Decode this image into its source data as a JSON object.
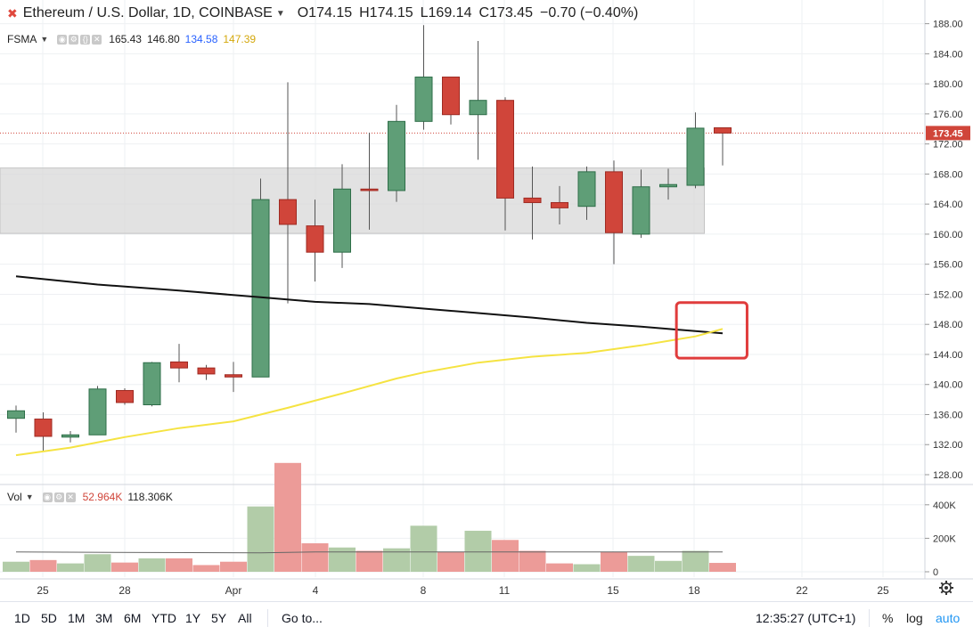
{
  "header": {
    "symbol": "Ethereum / U.S. Dollar, 1D, COINBASE",
    "open": "O174.15",
    "high": "H174.15",
    "low": "L169.14",
    "close": "C173.45",
    "change": "−0.70 (−0.40%)"
  },
  "studies": {
    "sma": {
      "name": "FSMA",
      "values": [
        "165.43",
        "146.80",
        "134.58",
        "147.39"
      ],
      "value_colors": [
        "#222222",
        "#222222",
        "#2962ff",
        "#f2c21b"
      ]
    },
    "vol": {
      "name": "Vol",
      "values": [
        "52.964K",
        "118.306K"
      ],
      "value_colors": [
        "#d0453a",
        "#222222"
      ]
    }
  },
  "price_axis": {
    "ticks": [
      "128.00",
      "132.00",
      "136.00",
      "140.00",
      "144.00",
      "148.00",
      "152.00",
      "156.00",
      "160.00",
      "164.00",
      "168.00",
      "172.00",
      "176.00",
      "180.00",
      "184.00",
      "188.00"
    ],
    "current_price_label": "173.45"
  },
  "volume_axis": {
    "ticks": [
      "0",
      "200K",
      "400K"
    ]
  },
  "time_axis": {
    "ticks": [
      "25",
      "28",
      "Apr",
      "4",
      "8",
      "11",
      "15",
      "18",
      "22",
      "25"
    ]
  },
  "chart_data": {
    "type": "candlestick",
    "ylim": [
      127,
      190
    ],
    "volume_ylim": [
      0,
      500000
    ],
    "current_price": 173.45,
    "candles": [
      {
        "o": 135.5,
        "h": 137.2,
        "l": 133.6,
        "c": 136.5,
        "v": 60000
      },
      {
        "o": 135.4,
        "h": 136.3,
        "l": 131.2,
        "c": 133.1,
        "v": 70000
      },
      {
        "o": 133.0,
        "h": 133.8,
        "l": 132.3,
        "c": 133.3,
        "v": 50000
      },
      {
        "o": 133.3,
        "h": 139.8,
        "l": 133.3,
        "c": 139.4,
        "v": 105000
      },
      {
        "o": 139.2,
        "h": 139.5,
        "l": 137.3,
        "c": 137.6,
        "v": 55000
      },
      {
        "o": 137.3,
        "h": 143.0,
        "l": 137.1,
        "c": 142.9,
        "v": 80000
      },
      {
        "o": 143.0,
        "h": 145.4,
        "l": 140.3,
        "c": 142.2,
        "v": 80000
      },
      {
        "o": 142.2,
        "h": 142.6,
        "l": 140.6,
        "c": 141.4,
        "v": 40000
      },
      {
        "o": 141.3,
        "h": 143.0,
        "l": 139.0,
        "c": 141.0,
        "v": 60000
      },
      {
        "o": 141.0,
        "h": 167.4,
        "l": 141.0,
        "c": 164.6,
        "v": 390000
      },
      {
        "o": 164.6,
        "h": 180.2,
        "l": 150.8,
        "c": 161.3,
        "v": 650000
      },
      {
        "o": 161.1,
        "h": 164.6,
        "l": 153.7,
        "c": 157.6,
        "v": 170000
      },
      {
        "o": 157.6,
        "h": 169.3,
        "l": 155.5,
        "c": 166.0,
        "v": 145000
      },
      {
        "o": 166.0,
        "h": 173.5,
        "l": 160.6,
        "c": 165.8,
        "v": 125000
      },
      {
        "o": 165.8,
        "h": 177.2,
        "l": 164.3,
        "c": 175.0,
        "v": 140000
      },
      {
        "o": 175.0,
        "h": 187.8,
        "l": 173.9,
        "c": 180.9,
        "v": 275000
      },
      {
        "o": 180.9,
        "h": 180.9,
        "l": 174.6,
        "c": 175.9,
        "v": 120000
      },
      {
        "o": 175.9,
        "h": 185.7,
        "l": 169.9,
        "c": 177.8,
        "v": 245000
      },
      {
        "o": 177.8,
        "h": 178.2,
        "l": 160.5,
        "c": 164.8,
        "v": 190000
      },
      {
        "o": 164.8,
        "h": 169.0,
        "l": 159.3,
        "c": 164.2,
        "v": 125000
      },
      {
        "o": 164.2,
        "h": 166.4,
        "l": 161.3,
        "c": 163.5,
        "v": 50000
      },
      {
        "o": 163.7,
        "h": 169.0,
        "l": 161.9,
        "c": 168.3,
        "v": 45000
      },
      {
        "o": 168.3,
        "h": 169.8,
        "l": 156.0,
        "c": 160.2,
        "v": 120000
      },
      {
        "o": 160.0,
        "h": 168.6,
        "l": 159.5,
        "c": 166.3,
        "v": 95000
      },
      {
        "o": 166.3,
        "h": 168.7,
        "l": 164.6,
        "c": 166.6,
        "v": 65000
      },
      {
        "o": 166.5,
        "h": 176.2,
        "l": 166.1,
        "c": 174.1,
        "v": 125000
      },
      {
        "o": 174.15,
        "h": 174.15,
        "l": 169.14,
        "c": 173.45,
        "v": 52964
      }
    ],
    "sma_black": [
      [
        0,
        154.4
      ],
      [
        3,
        153.3
      ],
      [
        6,
        152.5
      ],
      [
        9,
        151.6
      ],
      [
        11,
        151.0
      ],
      [
        13,
        150.7
      ],
      [
        15,
        150.1
      ],
      [
        17,
        149.5
      ],
      [
        19,
        148.9
      ],
      [
        21,
        148.2
      ],
      [
        23,
        147.7
      ],
      [
        25,
        147.1
      ],
      [
        26,
        146.8
      ]
    ],
    "sma_yellow": [
      [
        0,
        130.6
      ],
      [
        2,
        131.6
      ],
      [
        4,
        133.0
      ],
      [
        6,
        134.2
      ],
      [
        8,
        135.1
      ],
      [
        10,
        136.9
      ],
      [
        12,
        138.8
      ],
      [
        14,
        140.8
      ],
      [
        15,
        141.6
      ],
      [
        17,
        142.9
      ],
      [
        19,
        143.7
      ],
      [
        21,
        144.2
      ],
      [
        23,
        145.2
      ],
      [
        25,
        146.4
      ],
      [
        26,
        147.39
      ]
    ],
    "volume_ma": [
      [
        0,
        118000
      ],
      [
        5,
        115000
      ],
      [
        9,
        113000
      ],
      [
        11,
        118000
      ],
      [
        15,
        118000
      ],
      [
        20,
        118000
      ],
      [
        26,
        118306
      ]
    ],
    "zone": {
      "from_index": 0,
      "to_index": 25,
      "top": 168.8,
      "bottom": 160.1
    },
    "highlight_box": {
      "from_index": 24.3,
      "to_index": 26.9,
      "top": 150.9,
      "bottom": 143.5
    }
  },
  "colors": {
    "up": "#5f9e77",
    "up_border": "#2e6e48",
    "down": "#d0453a",
    "down_border": "#9e2a22",
    "sma_black": "#111111",
    "sma_yellow": "#f5e342",
    "zone": "#d8d8d8",
    "highlight": "#e03c3c",
    "vol_up": "#b2cca8",
    "vol_down": "#ec9b98",
    "price_label": "#d0453a"
  },
  "toolbar": {
    "timeframes": [
      "1D",
      "5D",
      "1M",
      "3M",
      "6M",
      "YTD",
      "1Y",
      "5Y",
      "All"
    ],
    "goto": "Go to...",
    "clock": "12:35:27 (UTC+1)",
    "percent": "%",
    "log": "log",
    "auto": "auto"
  }
}
